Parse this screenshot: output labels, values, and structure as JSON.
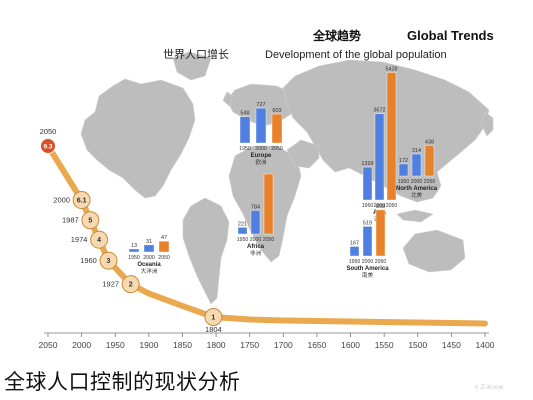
{
  "titles": {
    "en": "Global Trends",
    "cn": "全球趋势",
    "sub_en": "Development of the global population",
    "sub_cn": "世界人口增长"
  },
  "caption": "全球人口控制的现状分析",
  "watermark": "× Z-Know",
  "colors": {
    "orange": "#e8822a",
    "blue": "#4f7fe0",
    "map": "#bdbdbd",
    "curve": "#eaa94e",
    "marker_fill": "#f6d9b0",
    "marker_edge": "#c98a3a",
    "top_marker": "#d94f2a"
  },
  "chart_data": [
    {
      "type": "line",
      "title": "Development of the global population",
      "xlabel": "",
      "ylabel": "",
      "x_ticks": [
        2050,
        2000,
        1950,
        1900,
        1850,
        1800,
        1750,
        1700,
        1650,
        1600,
        1550,
        1500,
        1450,
        1400
      ],
      "xlim": [
        2050,
        1400
      ],
      "ylim": [
        0,
        9.5
      ],
      "series": [
        {
          "points": [
            {
              "x": 1400,
              "y": 0.35
            },
            {
              "x": 1500,
              "y": 0.45
            },
            {
              "x": 1600,
              "y": 0.55
            },
            {
              "x": 1700,
              "y": 0.65
            },
            {
              "x": 1750,
              "y": 0.75
            },
            {
              "x": 1804,
              "y": 1
            },
            {
              "x": 1850,
              "y": 1.25
            },
            {
              "x": 1900,
              "y": 1.65
            },
            {
              "x": 1927,
              "y": 2
            },
            {
              "x": 1960,
              "y": 3
            },
            {
              "x": 1974,
              "y": 4
            },
            {
              "x": 1987,
              "y": 5
            },
            {
              "x": 2000,
              "y": 6.1
            },
            {
              "x": 2050,
              "y": 9.3
            }
          ]
        }
      ],
      "milestones": [
        {
          "year": "1804",
          "value": "1"
        },
        {
          "year": "1927",
          "value": "2"
        },
        {
          "year": "1960",
          "value": "3"
        },
        {
          "year": "1974",
          "value": "4"
        },
        {
          "year": "1987",
          "value": "5"
        },
        {
          "year": "2000",
          "value": "6.1"
        },
        {
          "year": "2050",
          "value": "9.3"
        }
      ]
    },
    {
      "type": "bar",
      "years": [
        "1950",
        "2000",
        "2050"
      ],
      "regions": [
        {
          "key": "asia",
          "en": "Asia",
          "cn": "亚洲",
          "values": [
            1399,
            3672,
            5428
          ],
          "labels": [
            "1399",
            "3672",
            "5428"
          ]
        },
        {
          "key": "europe",
          "en": "Europe",
          "cn": "欧洲",
          "values": [
            548,
            727,
            603
          ],
          "labels": [
            "548",
            "727",
            "603"
          ]
        },
        {
          "key": "africa",
          "en": "Africa",
          "cn": "非洲",
          "values": [
            221,
            784,
            2000
          ],
          "labels": [
            "221",
            "784",
            ""
          ]
        },
        {
          "key": "north-america",
          "en": "North America",
          "cn": "北美",
          "values": [
            172,
            314,
            438
          ],
          "labels": [
            "172",
            "314",
            "438"
          ]
        },
        {
          "key": "south-america",
          "en": "South America",
          "cn": "南美",
          "values": [
            167,
            519,
            808
          ],
          "labels": [
            "167",
            "519",
            "808"
          ]
        },
        {
          "key": "oceania",
          "en": "Oceania",
          "cn": "大洋洲",
          "values": [
            13,
            31,
            47
          ],
          "labels": [
            "13",
            "31",
            "47"
          ]
        }
      ]
    }
  ]
}
